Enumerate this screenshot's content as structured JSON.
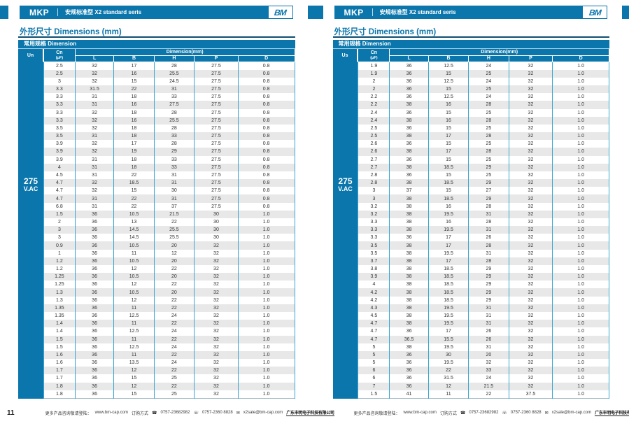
{
  "colors": {
    "accent": "#0B76AB",
    "column_line": "#36A6D3",
    "row_alt": "#E8E8E8",
    "title_rule": "#0F4F70"
  },
  "pages": [
    {
      "topbar": {
        "brand": "MKP",
        "subtitle": "安规标准型 X2 standard seris",
        "logo": "BM"
      },
      "section_title": "外形尺寸 Dimensions (mm)",
      "table": {
        "band_title": "常用规格 Dimension",
        "voltage_col_label": "Un",
        "cap_col_label": "Cn",
        "cap_col_unit": "(μF)",
        "dim_group_label": "Dimension(mm)",
        "dim_columns": [
          "L",
          "B",
          "H",
          "P",
          "D"
        ],
        "voltage_value": "275",
        "voltage_unit": "V.AC",
        "rows": [
          [
            "2.5",
            "32",
            "17",
            "28",
            "27.5",
            "0.8"
          ],
          [
            "2.5",
            "32",
            "16",
            "25.5",
            "27.5",
            "0.8"
          ],
          [
            "3",
            "32",
            "15",
            "24.5",
            "27.5",
            "0.8"
          ],
          [
            "3.3",
            "31.5",
            "22",
            "31",
            "27.5",
            "0.8"
          ],
          [
            "3.3",
            "31",
            "18",
            "33",
            "27.5",
            "0.8"
          ],
          [
            "3.3",
            "31",
            "16",
            "27.5",
            "27.5",
            "0.8"
          ],
          [
            "3.3",
            "32",
            "18",
            "28",
            "27.5",
            "0.8"
          ],
          [
            "3.3",
            "32",
            "16",
            "25.5",
            "27.5",
            "0.8"
          ],
          [
            "3.5",
            "32",
            "18",
            "28",
            "27.5",
            "0.8"
          ],
          [
            "3.5",
            "31",
            "18",
            "33",
            "27.5",
            "0.8"
          ],
          [
            "3.9",
            "32",
            "17",
            "28",
            "27.5",
            "0.8"
          ],
          [
            "3.9",
            "32",
            "19",
            "29",
            "27.5",
            "0.8"
          ],
          [
            "3.9",
            "31",
            "18",
            "33",
            "27.5",
            "0.8"
          ],
          [
            "4",
            "31",
            "18",
            "33",
            "27.5",
            "0.8"
          ],
          [
            "4.5",
            "31",
            "22",
            "31",
            "27.5",
            "0.8"
          ],
          [
            "4.7",
            "32",
            "18.5",
            "31",
            "27.5",
            "0.8"
          ],
          [
            "4.7",
            "32",
            "15",
            "30",
            "27.5",
            "0.8"
          ],
          [
            "4.7",
            "31",
            "22",
            "31",
            "27.5",
            "0.8"
          ],
          [
            "6.8",
            "31",
            "22",
            "37",
            "27.5",
            "0.8"
          ],
          [
            "1.5",
            "36",
            "10.5",
            "21.5",
            "30",
            "1.0"
          ],
          [
            "2",
            "36",
            "13",
            "22",
            "30",
            "1.0"
          ],
          [
            "3",
            "36",
            "14.5",
            "25.5",
            "30",
            "1.0"
          ],
          [
            "3",
            "36",
            "14.5",
            "25.5",
            "30",
            "1.0"
          ],
          [
            "0.9",
            "36",
            "10.5",
            "20",
            "32",
            "1.0"
          ],
          [
            "1",
            "36",
            "11",
            "12",
            "32",
            "1.0"
          ],
          [
            "1.2",
            "36",
            "10.5",
            "20",
            "32",
            "1.0"
          ],
          [
            "1.2",
            "36",
            "12",
            "22",
            "32",
            "1.0"
          ],
          [
            "1.25",
            "36",
            "10.5",
            "20",
            "32",
            "1.0"
          ],
          [
            "1.25",
            "36",
            "12",
            "22",
            "32",
            "1.0"
          ],
          [
            "1.3",
            "36",
            "10.5",
            "20",
            "32",
            "1.0"
          ],
          [
            "1.3",
            "36",
            "12",
            "22",
            "32",
            "1.0"
          ],
          [
            "1.35",
            "36",
            "11",
            "22",
            "32",
            "1.0"
          ],
          [
            "1.35",
            "36",
            "12.5",
            "24",
            "32",
            "1.0"
          ],
          [
            "1.4",
            "36",
            "11",
            "22",
            "32",
            "1.0"
          ],
          [
            "1.4",
            "36",
            "12.5",
            "24",
            "32",
            "1.0"
          ],
          [
            "1.5",
            "36",
            "11",
            "22",
            "32",
            "1.0"
          ],
          [
            "1.5",
            "36",
            "12.5",
            "24",
            "32",
            "1.0"
          ],
          [
            "1.6",
            "36",
            "11",
            "22",
            "32",
            "1.0"
          ],
          [
            "1.6",
            "36",
            "13.5",
            "24",
            "32",
            "1.0"
          ],
          [
            "1.7",
            "36",
            "12",
            "22",
            "32",
            "1.0"
          ],
          [
            "1.7",
            "36",
            "15",
            "25",
            "32",
            "1.0"
          ],
          [
            "1.8",
            "36",
            "12",
            "22",
            "32",
            "1.0"
          ],
          [
            "1.8",
            "36",
            "15",
            "25",
            "32",
            "1.0"
          ]
        ]
      },
      "footer": {
        "page_number": "11",
        "info_label": "更多产品咨询敬请登陆：",
        "website": "www.bm-cap.com",
        "order_label": "订购方式",
        "phone": "0757-23682982",
        "fax": "0757-2360 8828",
        "email": "x2sale@bm-cap.com",
        "company": "广东丰明电子科技有限公司"
      }
    },
    {
      "topbar": {
        "brand": "MKP",
        "subtitle": "安规标准型 X2 standard seris",
        "logo": "BM"
      },
      "section_title": "外形尺寸 Dimensions (mm)",
      "table": {
        "band_title": "常用规格 Dimension",
        "voltage_col_label": "Us",
        "cap_col_label": "Cn",
        "cap_col_unit": "(μF)",
        "dim_group_label": "Dimension(mm)",
        "dim_columns": [
          "L",
          "B",
          "H",
          "P",
          "D"
        ],
        "voltage_value": "275",
        "voltage_unit": "V.AC",
        "rows": [
          [
            "1.9",
            "36",
            "12.5",
            "24",
            "32",
            "1.0"
          ],
          [
            "1.9",
            "36",
            "15",
            "25",
            "32",
            "1.0"
          ],
          [
            "2",
            "36",
            "12.5",
            "24",
            "32",
            "1.0"
          ],
          [
            "2",
            "36",
            "15",
            "25",
            "32",
            "1.0"
          ],
          [
            "2.2",
            "36",
            "12.5",
            "24",
            "32",
            "1.0"
          ],
          [
            "2.2",
            "38",
            "16",
            "28",
            "32",
            "1.0"
          ],
          [
            "2.4",
            "36",
            "15",
            "25",
            "32",
            "1.0"
          ],
          [
            "2.4",
            "38",
            "16",
            "28",
            "32",
            "1.0"
          ],
          [
            "2.5",
            "36",
            "15",
            "25",
            "32",
            "1.0"
          ],
          [
            "2.5",
            "38",
            "17",
            "28",
            "32",
            "1.0"
          ],
          [
            "2.6",
            "36",
            "15",
            "25",
            "32",
            "1.0"
          ],
          [
            "2.6",
            "38",
            "17",
            "28",
            "32",
            "1.0"
          ],
          [
            "2.7",
            "36",
            "15",
            "25",
            "32",
            "1.0"
          ],
          [
            "2.7",
            "38",
            "18.5",
            "29",
            "32",
            "1.0"
          ],
          [
            "2.8",
            "36",
            "15",
            "25",
            "32",
            "1.0"
          ],
          [
            "2.8",
            "38",
            "18.5",
            "29",
            "32",
            "1.0"
          ],
          [
            "3",
            "37",
            "15",
            "27",
            "32",
            "1.0"
          ],
          [
            "3",
            "38",
            "18.5",
            "29",
            "32",
            "1.0"
          ],
          [
            "3.2",
            "38",
            "16",
            "28",
            "32",
            "1.0"
          ],
          [
            "3.2",
            "38",
            "19.5",
            "31",
            "32",
            "1.0"
          ],
          [
            "3.3",
            "38",
            "16",
            "28",
            "32",
            "1.0"
          ],
          [
            "3.3",
            "38",
            "19.5",
            "31",
            "32",
            "1.0"
          ],
          [
            "3.3",
            "36",
            "17",
            "26",
            "32",
            "1.0"
          ],
          [
            "3.5",
            "38",
            "17",
            "28",
            "32",
            "1.0"
          ],
          [
            "3.5",
            "38",
            "19.5",
            "31",
            "32",
            "1.0"
          ],
          [
            "3.7",
            "38",
            "17",
            "28",
            "32",
            "1.0"
          ],
          [
            "3.8",
            "38",
            "18.5",
            "29",
            "32",
            "1.0"
          ],
          [
            "3.9",
            "38",
            "18.5",
            "29",
            "32",
            "1.0"
          ],
          [
            "4",
            "38",
            "18.5",
            "29",
            "32",
            "1.0"
          ],
          [
            "4.2",
            "38",
            "18.5",
            "29",
            "32",
            "1.0"
          ],
          [
            "4.2",
            "38",
            "18.5",
            "29",
            "32",
            "1.0"
          ],
          [
            "4.3",
            "38",
            "19.5",
            "31",
            "32",
            "1.0"
          ],
          [
            "4.5",
            "38",
            "19.5",
            "31",
            "32",
            "1.0"
          ],
          [
            "4.7",
            "38",
            "19.5",
            "31",
            "32",
            "1.0"
          ],
          [
            "4.7",
            "36",
            "17",
            "26",
            "32",
            "1.0"
          ],
          [
            "4.7",
            "36.5",
            "15.5",
            "26",
            "32",
            "1.0"
          ],
          [
            "5",
            "38",
            "19.5",
            "31",
            "32",
            "1.0"
          ],
          [
            "5",
            "36",
            "30",
            "20",
            "32",
            "1.0"
          ],
          [
            "5",
            "36",
            "19.5",
            "32",
            "32",
            "1.0"
          ],
          [
            "6",
            "36",
            "22",
            "33",
            "32",
            "1.0"
          ],
          [
            "6",
            "36",
            "31.5",
            "24",
            "32",
            "1.0"
          ],
          [
            "7",
            "36",
            "12",
            "21.5",
            "32",
            "1.0"
          ],
          [
            "1.5",
            "41",
            "11",
            "22",
            "37.5",
            "1.0"
          ]
        ]
      },
      "footer": {
        "page_number": "12",
        "info_label": "更多产品咨询敬请登陆：",
        "website": "www.bm-cap.com",
        "order_label": "订购方式",
        "phone": "0757-23682982",
        "fax": "0757-2360 8828",
        "email": "x2sale@bm-cap.com",
        "company": "广东丰明电子科技有限公司"
      }
    }
  ]
}
